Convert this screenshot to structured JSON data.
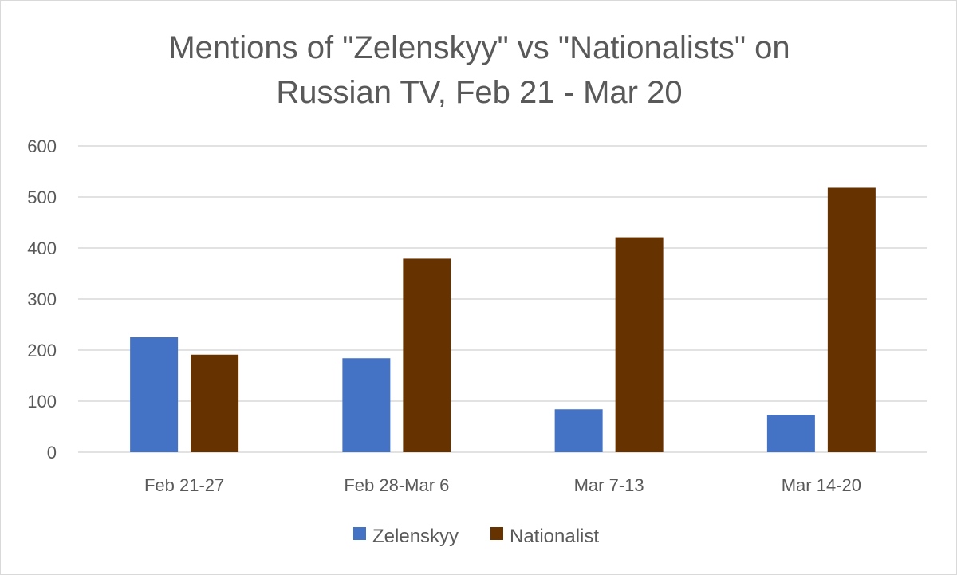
{
  "chart_data": {
    "type": "bar",
    "title": "Mentions of \"Zelenskyy\" vs \"Nationalists\" on Russian TV, Feb 21 - Mar 20",
    "title_lines": [
      "Mentions of \"Zelenskyy\" vs \"Nationalists\" on",
      "Russian TV, Feb 21 - Mar 20"
    ],
    "categories": [
      "Feb 21-27",
      "Feb 28-Mar 6",
      "Mar 7-13",
      "Mar 14-20"
    ],
    "series": [
      {
        "name": "Zelenskyy",
        "color": "#4472c4",
        "values": [
          225,
          184,
          84,
          73
        ]
      },
      {
        "name": "Nationalist",
        "color": "#663300",
        "values": [
          191,
          379,
          421,
          518
        ]
      }
    ],
    "xlabel": "",
    "ylabel": "",
    "ylim": [
      0,
      600
    ],
    "yticks": [
      0,
      100,
      200,
      300,
      400,
      500,
      600
    ],
    "grid": true,
    "legend": "bottom"
  }
}
